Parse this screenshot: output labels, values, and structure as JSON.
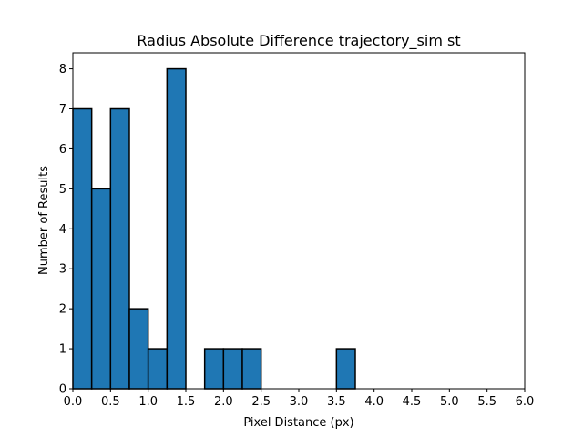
{
  "chart_data": {
    "type": "bar",
    "title": "Radius Absolute Difference trajectory_sim st",
    "xlabel": "Pixel Distance (px)",
    "ylabel": "Number of Results",
    "xlim": [
      0.0,
      6.0
    ],
    "ylim": [
      0,
      8.4
    ],
    "xticks": [
      "0.0",
      "0.5",
      "1.0",
      "1.5",
      "2.0",
      "2.5",
      "3.0",
      "3.5",
      "4.0",
      "4.5",
      "5.0",
      "5.5",
      "6.0"
    ],
    "yticks": [
      "0",
      "1",
      "2",
      "3",
      "4",
      "5",
      "6",
      "7",
      "8"
    ],
    "bin_width": 0.25,
    "bin_edges": [
      0.0,
      0.25,
      0.5,
      0.75,
      1.0,
      1.25,
      1.5,
      1.75,
      2.0,
      2.25,
      2.5,
      2.75,
      3.0,
      3.25,
      3.5,
      3.75,
      4.0,
      4.25,
      4.5,
      4.75,
      5.0
    ],
    "values": [
      7,
      5,
      7,
      2,
      1,
      8,
      0,
      1,
      1,
      1,
      0,
      0,
      0,
      0,
      1,
      0,
      0,
      0,
      0,
      0
    ],
    "bar_color": "#1f77b4",
    "edge_color": "#000000",
    "grid": false
  }
}
